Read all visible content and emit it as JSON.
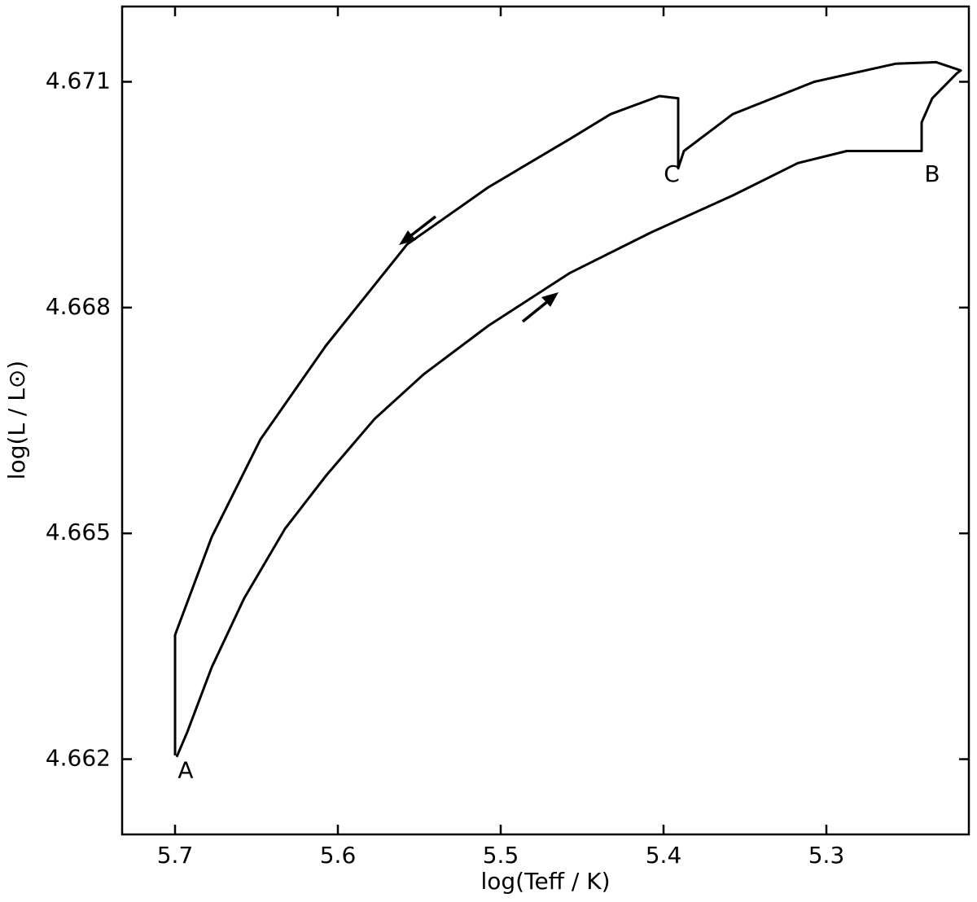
{
  "chart_data": {
    "type": "line",
    "xlabel": "log(Teff / K)",
    "ylabel": "log(L / L⊙)",
    "x": [
      5.699,
      5.6925,
      5.6775,
      5.6575,
      5.6325,
      5.6075,
      5.5775,
      5.5475,
      5.5075,
      5.4575,
      5.4075,
      5.3575,
      5.3175,
      5.2875,
      5.2415,
      5.2415,
      5.235,
      5.22,
      5.2175,
      5.2325,
      5.2575,
      5.3075,
      5.3575,
      5.3875,
      5.391,
      5.391,
      5.4025,
      5.4325,
      5.4575,
      5.5075,
      5.5575,
      5.6075,
      5.6475,
      5.6775,
      5.7,
      5.7
    ],
    "values": [
      4.66203,
      4.66236,
      4.66322,
      4.66414,
      4.66506,
      4.66576,
      4.66652,
      4.66711,
      4.66776,
      4.66846,
      4.669,
      4.66949,
      4.66992,
      4.67008,
      4.67008,
      4.67046,
      4.67078,
      4.67111,
      4.67115,
      4.67126,
      4.67124,
      4.671,
      4.67057,
      4.67008,
      4.66985,
      4.67078,
      4.67081,
      4.67057,
      4.67024,
      4.6696,
      4.66884,
      4.66749,
      4.66625,
      4.66495,
      4.66365,
      4.66205
    ],
    "color": "#000000",
    "xlim": [
      5.7325,
      5.2125
    ],
    "xticks": [
      5.7,
      5.6,
      5.5,
      5.4,
      5.3
    ],
    "ylim": [
      4.661,
      4.672
    ],
    "yticks": [
      4.662,
      4.665,
      4.668,
      4.671
    ],
    "annotations": [
      {
        "text": "A",
        "x": 5.6935,
        "y": 4.66184
      },
      {
        "text": "B",
        "x": 5.235,
        "y": 4.66976
      },
      {
        "text": "C",
        "x": 5.395,
        "y": 4.66976
      }
    ]
  }
}
